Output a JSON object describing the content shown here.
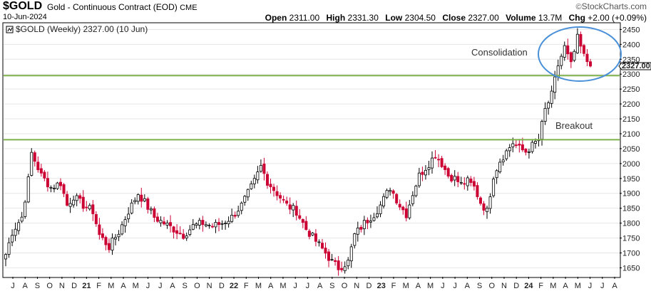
{
  "header": {
    "symbol": "$GOLD",
    "name": "Gold - Continuous Contract (EOD)",
    "exchange": "CME",
    "date": "10-Jun-2024",
    "brand": "StockCharts.com",
    "brand_prefix": "©",
    "open_label": "Open",
    "open_value": "2311.00",
    "high_label": "High",
    "high_value": "2331.30",
    "low_label": "Low",
    "low_value": "2304.50",
    "close_label": "Close",
    "close_value": "2327.00",
    "volume_label": "Volume",
    "volume_value": "13.7M",
    "chg_label": "Chg",
    "chg_value": "+2.00 (+0.09%)"
  },
  "legend": {
    "text": "$GOLD (Weekly) 2327.00 (10 Jun)"
  },
  "annotations": {
    "consolidation": "Consolidation",
    "breakout": "Breakout"
  },
  "last_price_tag": "2327.00",
  "colors": {
    "up": "#000000",
    "down": "#cc0033",
    "support": "#7db04a",
    "ellipse": "#4a90d9",
    "grid": "#e6e6e6"
  },
  "chart_data": {
    "type": "candlestick",
    "timeframe": "weekly",
    "ylim": [
      1620,
      2470
    ],
    "yticks": [
      1650,
      1700,
      1750,
      1800,
      1850,
      1900,
      1950,
      2000,
      2050,
      2100,
      2150,
      2200,
      2250,
      2300,
      2350,
      2400,
      2450
    ],
    "x_tick_labels": [
      "J",
      "A",
      "S",
      "O",
      "N",
      "D",
      "21",
      "F",
      "M",
      "A",
      "M",
      "J",
      "J",
      "A",
      "S",
      "O",
      "N",
      "D",
      "22",
      "F",
      "M",
      "A",
      "M",
      "J",
      "J",
      "A",
      "S",
      "O",
      "N",
      "D",
      "23",
      "F",
      "M",
      "A",
      "M",
      "J",
      "J",
      "A",
      "S",
      "O",
      "N",
      "D",
      "24",
      "F",
      "M",
      "A",
      "M",
      "J",
      "J",
      "A"
    ],
    "bold_ticks": [
      "21",
      "22",
      "23",
      "24"
    ],
    "horizontal_lines": [
      2080,
      2295
    ],
    "last_close": 2327.0,
    "anchors": [
      {
        "i": 0,
        "c": 1695
      },
      {
        "i": 2,
        "c": 1770
      },
      {
        "i": 5,
        "c": 1820
      },
      {
        "i": 7,
        "c": 1945
      },
      {
        "i": 8,
        "c": 2035
      },
      {
        "i": 11,
        "c": 1960
      },
      {
        "i": 14,
        "c": 1920
      },
      {
        "i": 17,
        "c": 1935
      },
      {
        "i": 19,
        "c": 1860
      },
      {
        "i": 21,
        "c": 1890
      },
      {
        "i": 24,
        "c": 1860
      },
      {
        "i": 27,
        "c": 1840
      },
      {
        "i": 29,
        "c": 1760
      },
      {
        "i": 32,
        "c": 1720
      },
      {
        "i": 35,
        "c": 1770
      },
      {
        "i": 38,
        "c": 1840
      },
      {
        "i": 41,
        "c": 1900
      },
      {
        "i": 43,
        "c": 1870
      },
      {
        "i": 46,
        "c": 1820
      },
      {
        "i": 49,
        "c": 1800
      },
      {
        "i": 52,
        "c": 1780
      },
      {
        "i": 55,
        "c": 1760
      },
      {
        "i": 58,
        "c": 1790
      },
      {
        "i": 61,
        "c": 1800
      },
      {
        "i": 64,
        "c": 1790
      },
      {
        "i": 67,
        "c": 1800
      },
      {
        "i": 70,
        "c": 1820
      },
      {
        "i": 73,
        "c": 1860
      },
      {
        "i": 75,
        "c": 1900
      },
      {
        "i": 77,
        "c": 1940
      },
      {
        "i": 79,
        "c": 1990
      },
      {
        "i": 81,
        "c": 1940
      },
      {
        "i": 84,
        "c": 1900
      },
      {
        "i": 87,
        "c": 1860
      },
      {
        "i": 90,
        "c": 1840
      },
      {
        "i": 93,
        "c": 1780
      },
      {
        "i": 96,
        "c": 1740
      },
      {
        "i": 99,
        "c": 1700
      },
      {
        "i": 101,
        "c": 1670
      },
      {
        "i": 103,
        "c": 1650
      },
      {
        "i": 106,
        "c": 1670
      },
      {
        "i": 108,
        "c": 1760
      },
      {
        "i": 111,
        "c": 1800
      },
      {
        "i": 114,
        "c": 1830
      },
      {
        "i": 116,
        "c": 1860
      },
      {
        "i": 119,
        "c": 1920
      },
      {
        "i": 122,
        "c": 1860
      },
      {
        "i": 124,
        "c": 1830
      },
      {
        "i": 126,
        "c": 1900
      },
      {
        "i": 128,
        "c": 1960
      },
      {
        "i": 131,
        "c": 2000
      },
      {
        "i": 133,
        "c": 2030
      },
      {
        "i": 135,
        "c": 2000
      },
      {
        "i": 137,
        "c": 1960
      },
      {
        "i": 139,
        "c": 1950
      },
      {
        "i": 141,
        "c": 1930
      },
      {
        "i": 143,
        "c": 1940
      },
      {
        "i": 145,
        "c": 1920
      },
      {
        "i": 147,
        "c": 1870
      },
      {
        "i": 149,
        "c": 1840
      },
      {
        "i": 151,
        "c": 1960
      },
      {
        "i": 153,
        "c": 2010
      },
      {
        "i": 155,
        "c": 2040
      },
      {
        "i": 157,
        "c": 2070
      },
      {
        "i": 159,
        "c": 2050
      },
      {
        "i": 161,
        "c": 2040
      },
      {
        "i": 163,
        "c": 2060
      },
      {
        "i": 165,
        "c": 2080
      },
      {
        "i": 167,
        "c": 2180
      },
      {
        "i": 169,
        "c": 2230
      },
      {
        "i": 171,
        "c": 2330
      },
      {
        "i": 173,
        "c": 2390
      },
      {
        "i": 175,
        "c": 2330
      },
      {
        "i": 177,
        "c": 2420
      },
      {
        "i": 179,
        "c": 2360
      },
      {
        "i": 181,
        "c": 2327
      }
    ]
  }
}
